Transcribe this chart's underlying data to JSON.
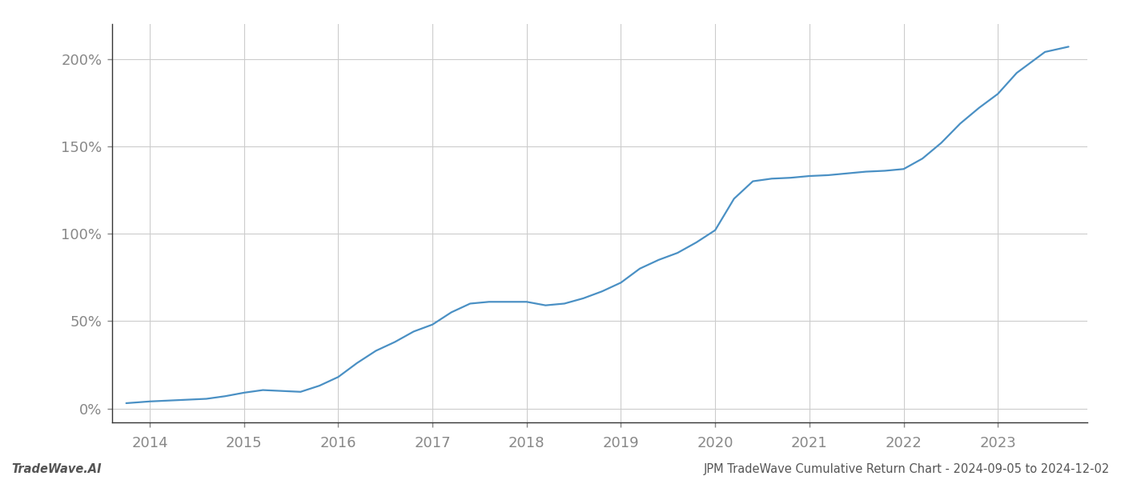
{
  "title": "JPM TradeWave Cumulative Return Chart - 2024-09-05 to 2024-12-02",
  "footer_left": "TradeWave.AI",
  "footer_right": "JPM TradeWave Cumulative Return Chart - 2024-09-05 to 2024-12-02",
  "line_color": "#4a90c4",
  "background_color": "#ffffff",
  "grid_color": "#cccccc",
  "x_values": [
    2013.75,
    2014.0,
    2014.2,
    2014.4,
    2014.6,
    2014.8,
    2015.0,
    2015.2,
    2015.4,
    2015.6,
    2015.8,
    2016.0,
    2016.2,
    2016.4,
    2016.6,
    2016.8,
    2017.0,
    2017.2,
    2017.4,
    2017.6,
    2017.8,
    2018.0,
    2018.2,
    2018.4,
    2018.6,
    2018.8,
    2019.0,
    2019.2,
    2019.4,
    2019.6,
    2019.8,
    2020.0,
    2020.2,
    2020.4,
    2020.6,
    2020.8,
    2021.0,
    2021.2,
    2021.4,
    2021.6,
    2021.8,
    2022.0,
    2022.2,
    2022.4,
    2022.6,
    2022.8,
    2023.0,
    2023.2,
    2023.5,
    2023.75
  ],
  "y_values": [
    3.0,
    4.0,
    4.5,
    5.0,
    5.5,
    7.0,
    9.0,
    10.5,
    10.0,
    9.5,
    13.0,
    18.0,
    26.0,
    33.0,
    38.0,
    44.0,
    48.0,
    55.0,
    60.0,
    61.0,
    61.0,
    61.0,
    59.0,
    60.0,
    63.0,
    67.0,
    72.0,
    80.0,
    85.0,
    89.0,
    95.0,
    102.0,
    120.0,
    130.0,
    131.5,
    132.0,
    133.0,
    133.5,
    134.5,
    135.5,
    136.0,
    137.0,
    143.0,
    152.0,
    163.0,
    172.0,
    180.0,
    192.0,
    204.0,
    207.0
  ],
  "xlim": [
    2013.6,
    2023.95
  ],
  "ylim": [
    -8,
    220
  ],
  "yticks": [
    0,
    50,
    100,
    150,
    200
  ],
  "ytick_labels": [
    "0%",
    "50%",
    "100%",
    "150%",
    "200%"
  ],
  "xticks": [
    2014,
    2015,
    2016,
    2017,
    2018,
    2019,
    2020,
    2021,
    2022,
    2023
  ],
  "xtick_labels": [
    "2014",
    "2015",
    "2016",
    "2017",
    "2018",
    "2019",
    "2020",
    "2021",
    "2022",
    "2023"
  ],
  "line_width": 1.6,
  "figsize": [
    14.0,
    6.0
  ],
  "dpi": 100,
  "tick_fontsize": 13,
  "footer_fontsize": 10.5
}
